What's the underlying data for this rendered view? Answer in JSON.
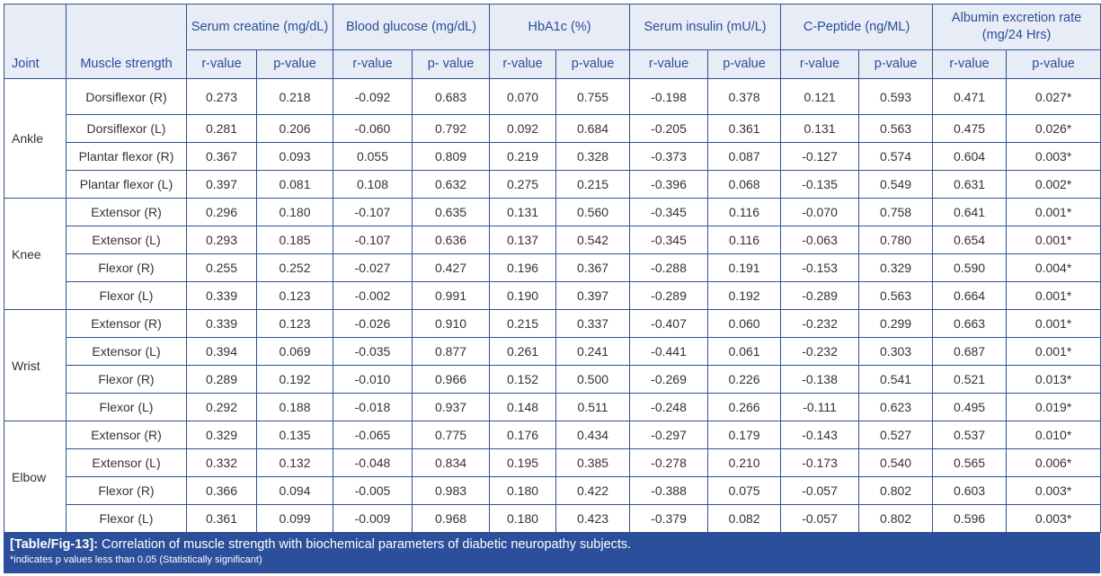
{
  "header": {
    "joint": "Joint",
    "muscle": "Muscle strength",
    "groups": [
      {
        "label": "Serum creatine (mg/dL)",
        "sub": [
          "r-value",
          "p-value"
        ]
      },
      {
        "label": "Blood glucose (mg/dL)",
        "sub": [
          "r-value",
          "p- value"
        ]
      },
      {
        "label": "HbA1c (%)",
        "sub": [
          "r-value",
          "p-value"
        ]
      },
      {
        "label": "Serum insulin (mU/L)",
        "sub": [
          "r-value",
          "p-value"
        ]
      },
      {
        "label": "C-Peptide (ng/ML)",
        "sub": [
          "r-value",
          "p-value"
        ]
      },
      {
        "label": "Albumin excretion rate (mg/24 Hrs)",
        "sub": [
          "r-value",
          "p-value"
        ]
      }
    ]
  },
  "joints": [
    {
      "name": "Ankle",
      "rows": [
        {
          "muscle": "Dorsiflexor (R)",
          "values": [
            "0.273",
            "0.218",
            "-0.092",
            "0.683",
            "0.070",
            "0.755",
            "-0.198",
            "0.378",
            "0.121",
            "0.593",
            "0.471",
            "0.027*"
          ]
        },
        {
          "muscle": "Dorsiflexor (L)",
          "values": [
            "0.281",
            "0.206",
            "-0.060",
            "0.792",
            "0.092",
            "0.684",
            "-0.205",
            "0.361",
            "0.131",
            "0.563",
            "0.475",
            "0.026*"
          ]
        },
        {
          "muscle": "Plantar flexor (R)",
          "values": [
            "0.367",
            "0.093",
            "0.055",
            "0.809",
            "0.219",
            "0.328",
            "-0.373",
            "0.087",
            "-0.127",
            "0.574",
            "0.604",
            "0.003*"
          ]
        },
        {
          "muscle": "Plantar flexor (L)",
          "values": [
            "0.397",
            "0.081",
            "0.108",
            "0.632",
            "0.275",
            "0.215",
            "-0.396",
            "0.068",
            "-0.135",
            "0.549",
            "0.631",
            "0.002*"
          ]
        }
      ]
    },
    {
      "name": "Knee",
      "rows": [
        {
          "muscle": "Extensor (R)",
          "values": [
            "0.296",
            "0.180",
            "-0.107",
            "0.635",
            "0.131",
            "0.560",
            "-0.345",
            "0.116",
            "-0.070",
            "0.758",
            "0.641",
            "0.001*"
          ]
        },
        {
          "muscle": "Extensor (L)",
          "values": [
            "0.293",
            "0.185",
            "-0.107",
            "0.636",
            "0.137",
            "0.542",
            "-0.345",
            "0.116",
            "-0.063",
            "0.780",
            "0.654",
            "0.001*"
          ]
        },
        {
          "muscle": "Flexor (R)",
          "values": [
            "0.255",
            "0.252",
            "-0.027",
            "0.427",
            "0.196",
            "0.367",
            "-0.288",
            "0.191",
            "-0.153",
            "0.329",
            "0.590",
            "0.004*"
          ]
        },
        {
          "muscle": "Flexor (L)",
          "values": [
            "0.339",
            "0.123",
            "-0.002",
            "0.991",
            "0.190",
            "0.397",
            "-0.289",
            "0.192",
            "-0.289",
            "0.563",
            "0.664",
            "0.001*"
          ]
        }
      ]
    },
    {
      "name": "Wrist",
      "rows": [
        {
          "muscle": "Extensor (R)",
          "values": [
            "0.339",
            "0.123",
            "-0.026",
            "0.910",
            "0.215",
            "0.337",
            "-0.407",
            "0.060",
            "-0.232",
            "0.299",
            "0.663",
            "0.001*"
          ]
        },
        {
          "muscle": "Extensor (L)",
          "values": [
            "0.394",
            "0.069",
            "-0.035",
            "0.877",
            "0.261",
            "0.241",
            "-0.441",
            "0.061",
            "-0.232",
            "0.303",
            "0.687",
            "0.001*"
          ]
        },
        {
          "muscle": "Flexor (R)",
          "values": [
            "0.289",
            "0.192",
            "-0.010",
            "0.966",
            "0.152",
            "0.500",
            "-0.269",
            "0.226",
            "-0.138",
            "0.541",
            "0.521",
            "0.013*"
          ]
        },
        {
          "muscle": "Flexor (L)",
          "values": [
            "0.292",
            "0.188",
            "-0.018",
            "0.937",
            "0.148",
            "0.511",
            "-0.248",
            "0.266",
            "-0.111",
            "0.623",
            "0.495",
            "0.019*"
          ]
        }
      ]
    },
    {
      "name": "Elbow",
      "rows": [
        {
          "muscle": "Extensor (R)",
          "values": [
            "0.329",
            "0.135",
            "-0.065",
            "0.775",
            "0.176",
            "0.434",
            "-0.297",
            "0.179",
            "-0.143",
            "0.527",
            "0.537",
            "0.010*"
          ]
        },
        {
          "muscle": "Extensor (L)",
          "values": [
            "0.332",
            "0.132",
            "-0.048",
            "0.834",
            "0.195",
            "0.385",
            "-0.278",
            "0.210",
            "-0.173",
            "0.540",
            "0.565",
            "0.006*"
          ]
        },
        {
          "muscle": "Flexor (R)",
          "values": [
            "0.366",
            "0.094",
            "-0.005",
            "0.983",
            "0.180",
            "0.422",
            "-0.388",
            "0.075",
            "-0.057",
            "0.802",
            "0.603",
            "0.003*"
          ]
        },
        {
          "muscle": "Flexor (L)",
          "values": [
            "0.361",
            "0.099",
            "-0.009",
            "0.968",
            "0.180",
            "0.423",
            "-0.379",
            "0.082",
            "-0.057",
            "0.802",
            "0.596",
            "0.003*"
          ]
        }
      ]
    }
  ],
  "caption": {
    "label": "[Table/Fig-13]:",
    "text": " Correlation of muscle strength with biochemical parameters of diabetic neuropathy subjects.",
    "note": "*indicates p values less than 0.05 (Statistically significant)"
  }
}
